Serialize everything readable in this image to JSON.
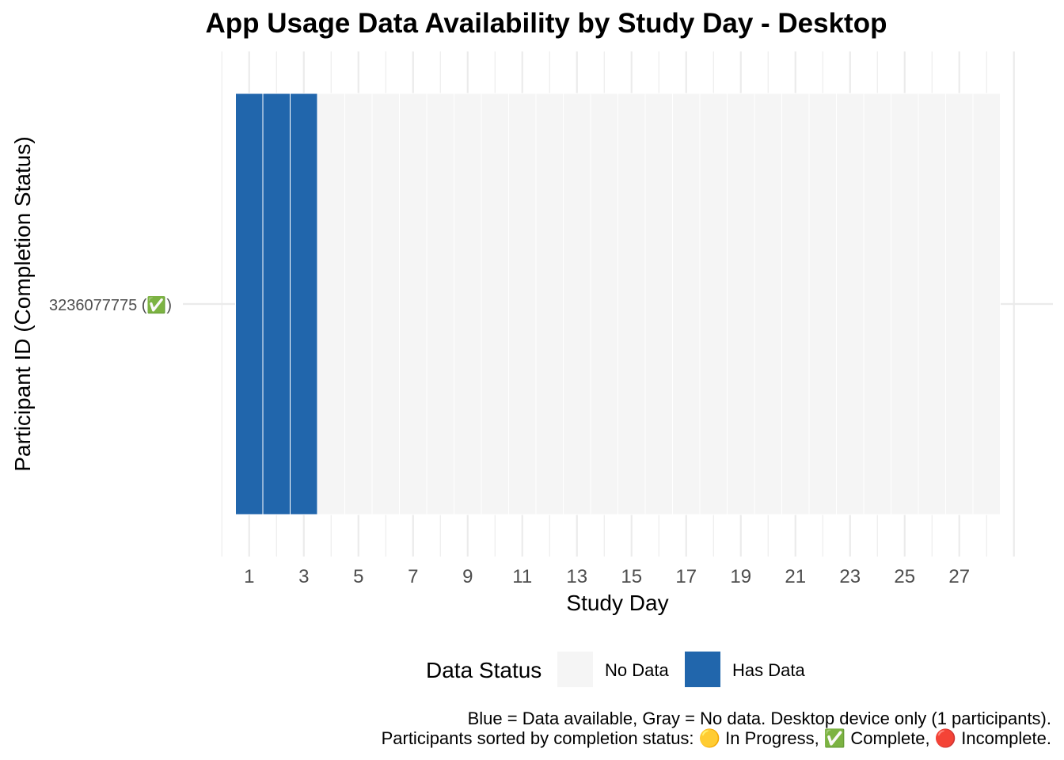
{
  "chart_data": {
    "type": "heatmap",
    "title": "App Usage Data Availability by Study Day - Desktop",
    "xlabel": "Study Day",
    "ylabel": "Participant ID (Completion Status)",
    "x_ticks": [
      "1",
      "3",
      "5",
      "7",
      "9",
      "11",
      "13",
      "15",
      "17",
      "19",
      "21",
      "23",
      "25",
      "27"
    ],
    "xlim": [
      0.5,
      28.5
    ],
    "days": [
      1,
      2,
      3,
      4,
      5,
      6,
      7,
      8,
      9,
      10,
      11,
      12,
      13,
      14,
      15,
      16,
      17,
      18,
      19,
      20,
      21,
      22,
      23,
      24,
      25,
      26,
      27,
      28
    ],
    "participants": [
      {
        "label": "3236077775 (✅)",
        "has_data": [
          1,
          1,
          1,
          0,
          0,
          0,
          0,
          0,
          0,
          0,
          0,
          0,
          0,
          0,
          0,
          0,
          0,
          0,
          0,
          0,
          0,
          0,
          0,
          0,
          0,
          0,
          0,
          0
        ]
      }
    ],
    "legend": {
      "title": "Data Status",
      "position": "bottom",
      "items": [
        {
          "label": "No Data",
          "color": "#f5f5f5"
        },
        {
          "label": "Has Data",
          "color": "#2166ac"
        }
      ]
    },
    "grid": true,
    "caption_lines": [
      "Blue = Data available, Gray = No data. Desktop device only (1 participants).",
      "Participants sorted by completion status: 🟡 In Progress, ✅ Complete, 🔴 Incomplete."
    ]
  }
}
